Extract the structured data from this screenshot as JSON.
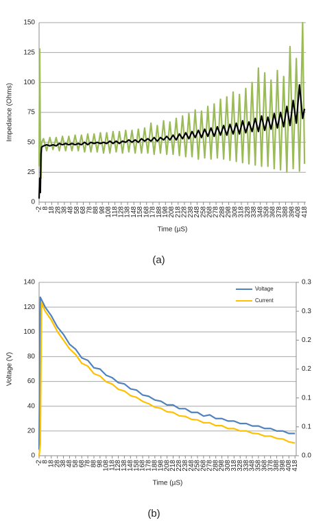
{
  "chart_data": [
    {
      "type": "line",
      "caption": "(a)",
      "x_label": "Time (µS)",
      "y_label": "Impedance (Ohms)",
      "xlim": [
        -2,
        420
      ],
      "xticks": [
        -2,
        8,
        18,
        28,
        38,
        48,
        58,
        68,
        78,
        88,
        98,
        108,
        118,
        128,
        138,
        148,
        158,
        168,
        178,
        188,
        198,
        208,
        218,
        228,
        238,
        248,
        258,
        268,
        278,
        288,
        298,
        308,
        318,
        328,
        338,
        348,
        358,
        368,
        378,
        388,
        398,
        408,
        418
      ],
      "ylim": [
        0,
        150
      ],
      "yticks": [
        0,
        25,
        50,
        75,
        100,
        125,
        150
      ],
      "grid": true,
      "x": [
        -2,
        -1,
        0,
        1,
        2,
        5,
        10,
        15,
        20,
        25,
        30,
        35,
        40,
        45,
        50,
        55,
        60,
        65,
        70,
        75,
        80,
        85,
        90,
        95,
        100,
        105,
        110,
        115,
        120,
        125,
        130,
        135,
        140,
        145,
        150,
        155,
        160,
        165,
        170,
        175,
        180,
        185,
        190,
        195,
        200,
        205,
        210,
        215,
        220,
        225,
        230,
        235,
        240,
        245,
        250,
        255,
        260,
        265,
        270,
        275,
        280,
        285,
        290,
        295,
        300,
        305,
        310,
        315,
        320,
        325,
        330,
        335,
        340,
        345,
        350,
        355,
        360,
        365,
        370,
        375,
        380,
        385,
        390,
        395,
        400,
        405,
        410,
        415,
        418
      ],
      "series": [
        {
          "color": "#9bbb59",
          "values": [
            30,
            128,
            45,
            20,
            50,
            53,
            43,
            54,
            44,
            54,
            43,
            55,
            43,
            55,
            43,
            56,
            43,
            56,
            42,
            57,
            42,
            57,
            42,
            58,
            41,
            58,
            41,
            59,
            42,
            59,
            41,
            60,
            42,
            60,
            41,
            61,
            41,
            62,
            41,
            66,
            40,
            64,
            41,
            68,
            40,
            67,
            40,
            70,
            39,
            72,
            38,
            74,
            38,
            77,
            36,
            76,
            37,
            80,
            36,
            82,
            37,
            86,
            36,
            88,
            35,
            92,
            34,
            90,
            33,
            95,
            32,
            100,
            31,
            112,
            30,
            108,
            30,
            102,
            28,
            110,
            27,
            105,
            25,
            130,
            28,
            120,
            26,
            150,
            32
          ]
        },
        {
          "color": "#000000",
          "values": [
            3,
            20,
            8,
            40,
            46,
            47,
            48,
            47,
            48,
            47,
            49,
            48,
            49,
            48,
            49,
            48,
            49,
            48,
            50,
            48,
            50,
            49,
            50,
            49,
            50,
            49,
            51,
            49,
            51,
            49,
            51,
            50,
            52,
            50,
            52,
            50,
            53,
            51,
            53,
            51,
            54,
            51,
            54,
            52,
            55,
            52,
            56,
            52,
            57,
            53,
            58,
            53,
            59,
            54,
            60,
            54,
            61,
            55,
            62,
            55,
            63,
            56,
            64,
            56,
            65,
            57,
            66,
            57,
            68,
            58,
            67,
            59,
            70,
            59,
            72,
            60,
            71,
            61,
            74,
            62,
            75,
            63,
            80,
            64,
            85,
            66,
            98,
            70,
            78
          ]
        }
      ]
    },
    {
      "type": "line",
      "caption": "(b)",
      "x_label": "Time (µS)",
      "y_label": "Voltage (V)",
      "xlim": [
        -2,
        420
      ],
      "xticks": [
        -2,
        8,
        18,
        28,
        38,
        48,
        58,
        68,
        78,
        88,
        98,
        108,
        118,
        128,
        138,
        148,
        158,
        168,
        178,
        188,
        198,
        208,
        218,
        228,
        238,
        248,
        258,
        268,
        278,
        288,
        298,
        308,
        318,
        328,
        338,
        348,
        358,
        368,
        378,
        388,
        398,
        408,
        418
      ],
      "ylim": [
        0,
        140
      ],
      "yticks": [
        0,
        20,
        40,
        60,
        80,
        100,
        120,
        140
      ],
      "y2lim": [
        0,
        0.3
      ],
      "y2ticks": [
        {
          "value": 0,
          "label": "0.0"
        },
        {
          "value": 0.05,
          "label": "0.1"
        },
        0.1,
        {
          "value": 0.15,
          "label": "0.2"
        },
        0.2,
        {
          "value": 0.25,
          "label": "0.3"
        },
        0.3
      ],
      "grid": true,
      "legend": "upper right",
      "x": [
        -2,
        0,
        2,
        8,
        18,
        28,
        38,
        48,
        58,
        68,
        78,
        88,
        98,
        108,
        118,
        128,
        138,
        148,
        158,
        168,
        178,
        188,
        198,
        208,
        218,
        228,
        238,
        248,
        258,
        268,
        278,
        288,
        298,
        308,
        318,
        328,
        338,
        348,
        358,
        368,
        378,
        388,
        398,
        408,
        418
      ],
      "series": [
        {
          "name": "Voltage",
          "color": "#4f81bd",
          "values": [
            5,
            128,
            126,
            120,
            113,
            104,
            98,
            90,
            86,
            79,
            77,
            71,
            70,
            65,
            63,
            59,
            58,
            54,
            53,
            49,
            48,
            45,
            44,
            41,
            41,
            38,
            38,
            35,
            35,
            32,
            33,
            30,
            30,
            28,
            28,
            26,
            26,
            24,
            24,
            22,
            22,
            20,
            20,
            18,
            18
          ]
        },
        {
          "name": "Current",
          "color": "#ffc000",
          "axis": "y2",
          "values": [
            0.0,
            0.02,
            0.265,
            0.25,
            0.235,
            0.215,
            0.2,
            0.185,
            0.175,
            0.16,
            0.155,
            0.142,
            0.138,
            0.128,
            0.124,
            0.115,
            0.112,
            0.104,
            0.101,
            0.094,
            0.09,
            0.084,
            0.082,
            0.076,
            0.075,
            0.069,
            0.068,
            0.063,
            0.062,
            0.057,
            0.057,
            0.052,
            0.052,
            0.047,
            0.047,
            0.043,
            0.043,
            0.039,
            0.038,
            0.034,
            0.034,
            0.03,
            0.029,
            0.024,
            0.022
          ]
        }
      ]
    }
  ]
}
